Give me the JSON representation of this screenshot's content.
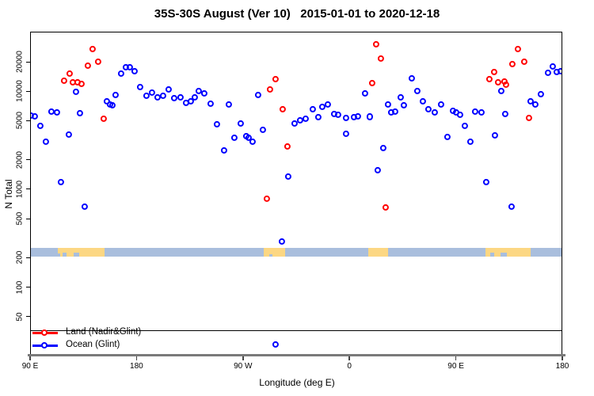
{
  "title": "35S-30S August (Ver 10)   2015-01-01 to 2020-12-18",
  "colors": {
    "land_series": "#ff0000",
    "ocean_series": "#0000ff",
    "strip_ocean": "#a9bedd",
    "strip_land": "#fcd783",
    "axis_thick": "#7a7a7a",
    "box_border": "#000000"
  },
  "y_axis": {
    "label": "N Total",
    "scale": "log10",
    "ticks": [
      50,
      100,
      200,
      500,
      1000,
      2000,
      5000,
      10000,
      20000
    ]
  },
  "x_axis": {
    "label": "Longitude (deg E)",
    "note": "axis spans 450 degrees of longitude: 90E -> 180 -> 90W -> 0 -> 90E -> 180",
    "ticks": [
      {
        "deg": 0,
        "label": "90 E"
      },
      {
        "deg": 90,
        "label": "180"
      },
      {
        "deg": 180,
        "label": "90 W"
      },
      {
        "deg": 270,
        "label": "0"
      },
      {
        "deg": 360,
        "label": "90 E"
      },
      {
        "deg": 450,
        "label": "180"
      }
    ]
  },
  "legend": {
    "items": [
      {
        "label": "Land (Nadir&Glint)",
        "color": "#ff0000"
      },
      {
        "label": "Ocean (Glint)",
        "color": "#0000ff"
      }
    ]
  },
  "map_strip": {
    "description": "land/ocean band near N=200-250 showing continents at 35S-30S",
    "land_patches_deg": [
      [
        23.4,
        62.9
      ],
      [
        197.5,
        215.6
      ],
      [
        285.9,
        302.7
      ],
      [
        385.1,
        423.2
      ]
    ]
  },
  "chart_data": {
    "type": "scatter",
    "title": "35S-30S August (Ver 10)   2015-01-01 to 2020-12-18",
    "xlabel": "Longitude (deg E)",
    "ylabel": "N Total",
    "x_units": "degrees along axis from 90E (wraps 450 deg total)",
    "y_scale": "log10",
    "ylim": [
      20,
      45000
    ],
    "grid": false,
    "legend_position": "bottom-left",
    "series": [
      {
        "name": "Land (Nadir&Glint)",
        "color": "#ff0000",
        "points": [
          [
            52.9,
            27000
          ],
          [
            57.6,
            20000
          ],
          [
            48.9,
            18200
          ],
          [
            33.5,
            15100
          ],
          [
            28.8,
            12800
          ],
          [
            36.2,
            12300
          ],
          [
            40.2,
            12300
          ],
          [
            43.5,
            11900
          ],
          [
            62.3,
            5230
          ],
          [
            207.6,
            13300
          ],
          [
            202.9,
            10400
          ],
          [
            213.6,
            6550
          ],
          [
            217.6,
            2730
          ],
          [
            200.2,
            800
          ],
          [
            292.6,
            30000
          ],
          [
            296.6,
            21500
          ],
          [
            289.3,
            12100
          ],
          [
            300.7,
            650
          ],
          [
            412.5,
            27000
          ],
          [
            417.8,
            20000
          ],
          [
            407.8,
            18900
          ],
          [
            392.4,
            15700
          ],
          [
            388.4,
            13300
          ],
          [
            395.8,
            12300
          ],
          [
            401.1,
            12600
          ],
          [
            402.5,
            11700
          ],
          [
            421.9,
            5330
          ]
        ]
      },
      {
        "name": "Ocean (Glint)",
        "color": "#0000ff",
        "points": [
          [
            38.8,
            9860
          ],
          [
            77.0,
            15100
          ],
          [
            81.0,
            17600
          ],
          [
            84.4,
            17600
          ],
          [
            88.4,
            16000
          ],
          [
            93.1,
            11000
          ],
          [
            98.4,
            8980
          ],
          [
            103.1,
            9680
          ],
          [
            107.8,
            8650
          ],
          [
            112.5,
            8980
          ],
          [
            117.2,
            10400
          ],
          [
            121.9,
            8490
          ],
          [
            127.2,
            8650
          ],
          [
            131.9,
            7600
          ],
          [
            135.9,
            7880
          ],
          [
            139.3,
            8650
          ],
          [
            142.6,
            10000
          ],
          [
            147.3,
            9500
          ],
          [
            152.7,
            7450
          ],
          [
            72.3,
            9150
          ],
          [
            65.0,
            7880
          ],
          [
            67.6,
            7320
          ],
          [
            69.6,
            7180
          ],
          [
            0.7,
            5640
          ],
          [
            4.0,
            5535
          ],
          [
            18.1,
            6190
          ],
          [
            22.8,
            6075
          ],
          [
            42.2,
            5960
          ],
          [
            8.7,
            4430
          ],
          [
            32.8,
            3610
          ],
          [
            13.4,
            3050
          ],
          [
            26.1,
            1180
          ],
          [
            46.2,
            663
          ],
          [
            168.1,
            7320
          ],
          [
            158.0,
            4600
          ],
          [
            178.1,
            4680
          ],
          [
            172.8,
            3350
          ],
          [
            182.8,
            3475
          ],
          [
            184.8,
            3350
          ],
          [
            188.2,
            3050
          ],
          [
            164.1,
            2490
          ],
          [
            192.9,
            9150
          ],
          [
            196.9,
            4030
          ],
          [
            218.3,
            1345
          ],
          [
            212.9,
            292
          ],
          [
            223.7,
            4680
          ],
          [
            228.3,
            5045
          ],
          [
            233.0,
            5235
          ],
          [
            239.1,
            6550
          ],
          [
            243.8,
            5430
          ],
          [
            247.1,
            6920
          ],
          [
            251.8,
            7320
          ],
          [
            257.1,
            5850
          ],
          [
            260.5,
            5745
          ],
          [
            267.2,
            5330
          ],
          [
            273.9,
            5430
          ],
          [
            277.2,
            5535
          ],
          [
            287.3,
            5500
          ],
          [
            267.2,
            3675
          ],
          [
            283.3,
            9500
          ],
          [
            302.7,
            7320
          ],
          [
            305.4,
            6075
          ],
          [
            308.7,
            6190
          ],
          [
            313.4,
            8650
          ],
          [
            316.1,
            7180
          ],
          [
            322.8,
            13530
          ],
          [
            327.5,
            10000
          ],
          [
            332.2,
            7880
          ],
          [
            336.8,
            6550
          ],
          [
            298.7,
            2630
          ],
          [
            294.0,
            1560
          ],
          [
            347.5,
            7320
          ],
          [
            342.2,
            6075
          ],
          [
            357.6,
            6310
          ],
          [
            360.2,
            6075
          ],
          [
            363.6,
            5745
          ],
          [
            376.3,
            6190
          ],
          [
            381.7,
            6075
          ],
          [
            398.4,
            10000
          ],
          [
            401.8,
            5850
          ],
          [
            431.9,
            9330
          ],
          [
            423.2,
            7880
          ],
          [
            427.2,
            7320
          ],
          [
            367.6,
            4430
          ],
          [
            352.9,
            3410
          ],
          [
            372.3,
            3050
          ],
          [
            393.1,
            3540
          ],
          [
            385.7,
            1180
          ],
          [
            407.1,
            663
          ],
          [
            437.9,
            15400
          ],
          [
            441.9,
            17900
          ],
          [
            445.3,
            15700
          ],
          [
            448.6,
            16100
          ],
          [
            207.6,
            26
          ]
        ]
      }
    ]
  }
}
